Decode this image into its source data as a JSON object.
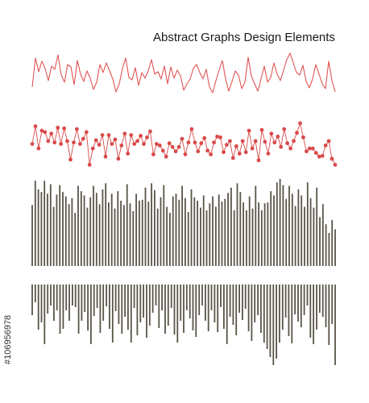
{
  "chart_data": [
    {
      "type": "line",
      "title": "Abstract Graphs Design Elements",
      "style": "plain-line",
      "color": "#e05555",
      "ylim": [
        0,
        100
      ],
      "values": [
        52,
        88,
        71,
        84,
        75,
        60,
        78,
        74,
        92,
        67,
        58,
        80,
        77,
        55,
        85,
        68,
        59,
        72,
        63,
        49,
        58,
        80,
        70,
        82,
        72,
        62,
        46,
        56,
        75,
        88,
        64,
        61,
        76,
        54,
        70,
        63,
        72,
        86,
        68,
        71,
        62,
        78,
        56,
        77,
        63,
        73,
        66,
        48,
        56,
        62,
        75,
        80,
        70,
        62,
        74,
        52,
        45,
        60,
        73,
        85,
        62,
        47,
        59,
        72,
        67,
        50,
        58,
        89,
        66,
        56,
        47,
        62,
        78,
        58,
        64,
        82,
        68,
        60,
        73,
        86,
        94,
        82,
        70,
        67,
        79,
        59,
        51,
        62,
        80,
        68,
        56,
        50,
        84,
        60,
        46
      ]
    },
    {
      "type": "line",
      "style": "line-with-markers",
      "color": "#d94a4a",
      "ylim": [
        0,
        100
      ],
      "values": [
        58,
        82,
        52,
        76,
        74,
        62,
        72,
        60,
        80,
        58,
        79,
        62,
        37,
        60,
        78,
        58,
        65,
        74,
        30,
        52,
        63,
        57,
        70,
        41,
        70,
        58,
        64,
        38,
        56,
        72,
        45,
        70,
        58,
        62,
        69,
        58,
        67,
        75,
        44,
        58,
        56,
        49,
        41,
        59,
        54,
        48,
        54,
        65,
        44,
        60,
        78,
        60,
        48,
        59,
        66,
        49,
        44,
        60,
        68,
        67,
        47,
        57,
        62,
        39,
        55,
        45,
        62,
        47,
        76,
        52,
        62,
        36,
        77,
        61,
        45,
        72,
        60,
        68,
        54,
        78,
        59,
        52,
        62,
        73,
        86,
        67,
        48,
        52,
        52,
        46,
        41,
        42,
        56,
        62,
        38,
        30
      ]
    },
    {
      "type": "bar",
      "style": "bars-up",
      "color": "#5a5448",
      "ylim": [
        0,
        100
      ],
      "values": [
        70,
        98,
        88,
        85,
        98,
        83,
        94,
        68,
        82,
        93,
        85,
        80,
        71,
        78,
        61,
        92,
        86,
        81,
        67,
        79,
        92,
        84,
        71,
        88,
        95,
        73,
        83,
        66,
        86,
        75,
        70,
        94,
        72,
        63,
        83,
        75,
        76,
        90,
        74,
        95,
        87,
        66,
        79,
        93,
        68,
        61,
        80,
        83,
        76,
        92,
        78,
        62,
        88,
        79,
        75,
        67,
        81,
        64,
        72,
        80,
        68,
        82,
        74,
        77,
        84,
        90,
        64,
        95,
        85,
        73,
        64,
        80,
        66,
        92,
        73,
        64,
        72,
        73,
        86,
        81,
        96,
        100,
        93,
        77,
        92,
        83,
        69,
        88,
        81,
        68,
        96,
        78,
        67,
        90,
        56,
        71,
        48,
        38,
        53,
        42
      ]
    },
    {
      "type": "bar",
      "style": "bars-down",
      "color": "#5a5448",
      "ylim": [
        0,
        100
      ],
      "values": [
        38,
        22,
        56,
        47,
        74,
        36,
        26,
        45,
        32,
        61,
        55,
        32,
        45,
        26,
        28,
        61,
        45,
        34,
        57,
        74,
        39,
        29,
        60,
        45,
        27,
        55,
        72,
        33,
        49,
        61,
        40,
        56,
        72,
        29,
        63,
        47,
        41,
        66,
        51,
        35,
        26,
        54,
        32,
        61,
        51,
        29,
        62,
        72,
        45,
        60,
        32,
        42,
        57,
        65,
        38,
        26,
        45,
        58,
        32,
        47,
        59,
        28,
        55,
        74,
        40,
        50,
        63,
        35,
        44,
        30,
        58,
        70,
        47,
        38,
        60,
        72,
        80,
        90,
        100,
        92,
        72,
        56,
        41,
        64,
        73,
        37,
        46,
        53,
        38,
        26,
        66,
        74,
        56,
        35,
        40,
        53,
        75,
        49,
        100
      ]
    }
  ],
  "watermark": {
    "stock_id": "#106956978"
  }
}
